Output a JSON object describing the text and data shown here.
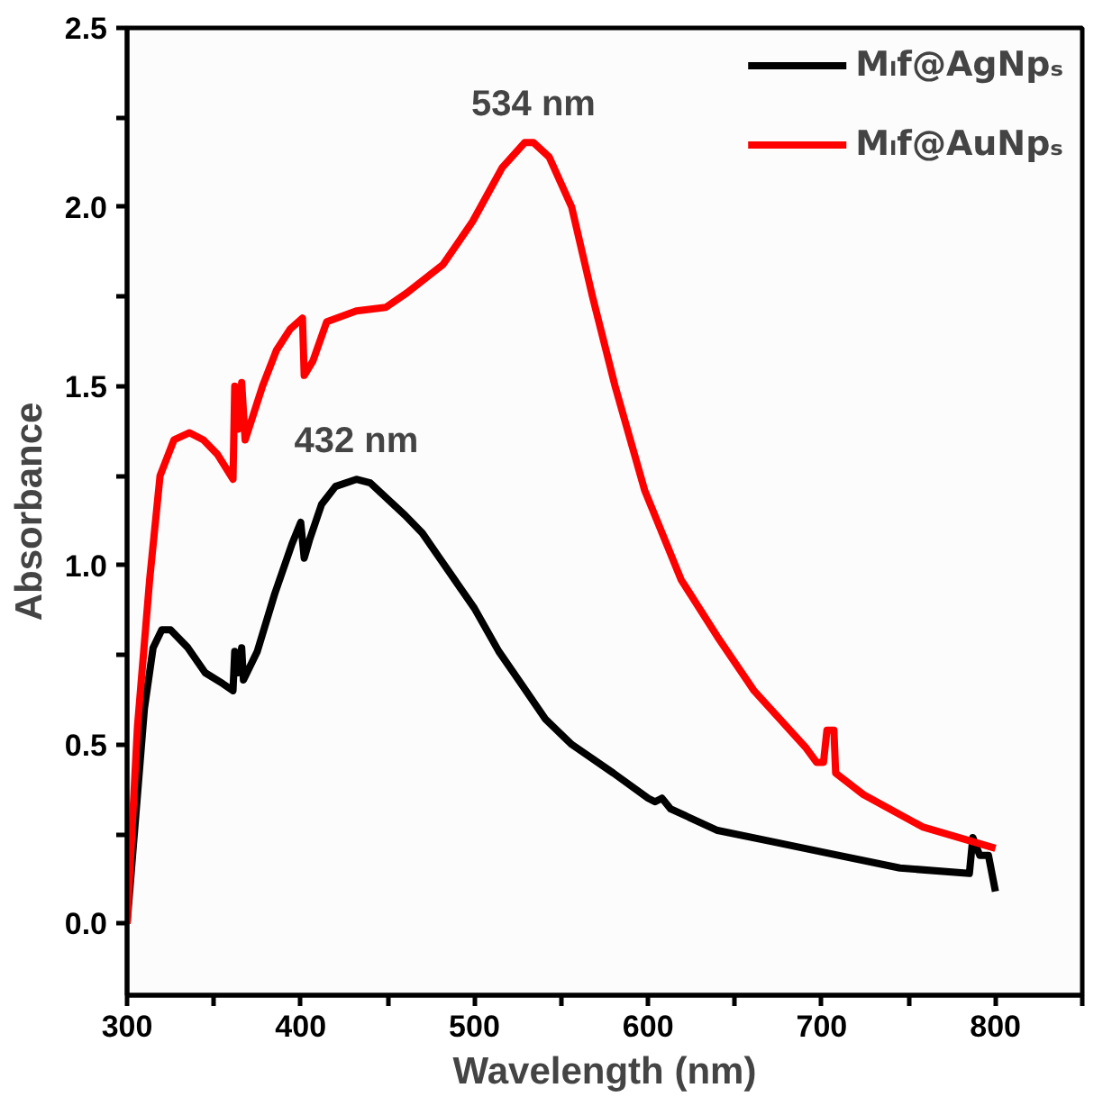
{
  "chart_data": {
    "type": "line",
    "xlabel": "Wavelength (nm)",
    "ylabel": "Absorbance",
    "xlim": [
      300,
      850
    ],
    "xticks": [
      300,
      {
        "value": 350,
        "label": null
      },
      400,
      {
        "value": 450,
        "label": null
      },
      500,
      {
        "value": 550,
        "label": null
      },
      600,
      {
        "value": 650,
        "label": null
      },
      700,
      {
        "value": 750,
        "label": null
      },
      800,
      {
        "value": 850,
        "label": null
      }
    ],
    "ylim": [
      -0.2,
      2.5
    ],
    "yticks": [
      {
        "value": 0,
        "label": "0.0"
      },
      {
        "value": 0.25,
        "label": null
      },
      {
        "value": 0.5,
        "label": "0.5"
      },
      {
        "value": 0.75,
        "label": null
      },
      {
        "value": 1,
        "label": "1.0"
      },
      {
        "value": 1.25,
        "label": null
      },
      {
        "value": 1.5,
        "label": "1.5"
      },
      {
        "value": 1.75,
        "label": null
      },
      {
        "value": 2,
        "label": "2.0"
      },
      {
        "value": 2.25,
        "label": null
      },
      {
        "value": 2.5,
        "label": "2.5"
      }
    ],
    "grid": false,
    "legend": "top right",
    "marker": "none",
    "line_style": "solid",
    "annotations": [
      {
        "text": "534 nm",
        "x": 534,
        "y": 2.18
      },
      {
        "text": "432 nm",
        "x": 432,
        "y": 1.24
      }
    ],
    "series": [
      {
        "name": "Mₗf@AgNpₛ",
        "color": "#000000",
        "x": [
          300,
          305,
          310,
          315,
          320,
          325,
          335,
          345,
          355,
          361,
          362,
          364,
          366,
          367,
          375,
          385,
          395,
          400,
          402,
          405,
          412,
          420,
          432,
          440,
          460,
          470,
          480,
          500,
          514,
          524,
          541,
          556,
          580,
          600,
          604,
          608,
          613,
          640,
          670,
          700,
          745,
          785,
          787,
          791,
          796,
          800
        ],
        "values": [
          0,
          0.3,
          0.6,
          0.77,
          0.82,
          0.82,
          0.77,
          0.7,
          0.67,
          0.65,
          0.76,
          0.7,
          0.77,
          0.68,
          0.76,
          0.92,
          1.06,
          1.12,
          1.02,
          1.07,
          1.17,
          1.22,
          1.24,
          1.23,
          1.14,
          1.09,
          1.02,
          0.88,
          0.76,
          0.69,
          0.57,
          0.5,
          0.42,
          0.35,
          0.34,
          0.35,
          0.32,
          0.26,
          0.23,
          0.2,
          0.155,
          0.14,
          0.24,
          0.19,
          0.19,
          0.09
        ]
      },
      {
        "name": "Mₗf@AuNpₛ",
        "color": "#ff0000",
        "x": [
          300,
          306,
          313,
          319,
          327,
          336,
          344,
          352,
          361,
          362,
          364,
          366,
          368,
          378,
          386,
          394,
          401,
          402,
          407,
          415,
          432,
          449,
          461,
          482,
          499,
          516,
          529,
          534,
          543,
          556,
          568,
          581,
          598,
          619,
          640,
          661,
          691,
          697,
          701,
          703,
          707,
          708,
          724,
          758,
          800
        ],
        "values": [
          0,
          0.55,
          0.96,
          1.25,
          1.35,
          1.37,
          1.35,
          1.31,
          1.24,
          1.5,
          1.38,
          1.51,
          1.35,
          1.5,
          1.6,
          1.66,
          1.69,
          1.53,
          1.57,
          1.68,
          1.71,
          1.72,
          1.76,
          1.84,
          1.96,
          2.11,
          2.18,
          2.18,
          2.14,
          2.0,
          1.75,
          1.5,
          1.21,
          0.96,
          0.8,
          0.65,
          0.49,
          0.45,
          0.45,
          0.54,
          0.54,
          0.42,
          0.36,
          0.27,
          0.21
        ]
      }
    ]
  }
}
